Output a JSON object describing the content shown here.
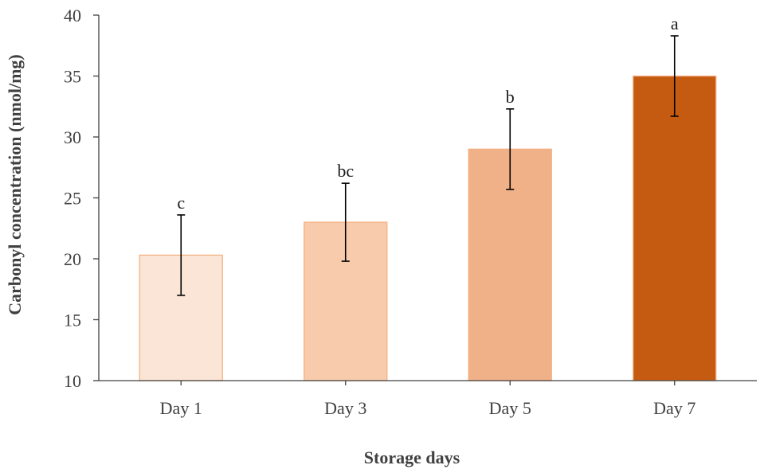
{
  "chart_data": {
    "type": "bar",
    "categories": [
      "Day 1",
      "Day 3",
      "Day 5",
      "Day 7"
    ],
    "values": [
      20.3,
      23.0,
      29.0,
      35.0
    ],
    "error": [
      3.3,
      3.2,
      3.3,
      3.3
    ],
    "significance": [
      "c",
      "bc",
      "b",
      "a"
    ],
    "colors": [
      "#fbe5d6",
      "#f8cbad",
      "#f0b088",
      "#c55a11"
    ],
    "edge_color": "#f4b183",
    "xlabel": "Storage days",
    "ylabel": "Carbonyl concentration (nmol/mg)",
    "ylim": [
      10,
      40
    ],
    "yticks": [
      10,
      15,
      20,
      25,
      30,
      35,
      40
    ],
    "grid": false
  }
}
